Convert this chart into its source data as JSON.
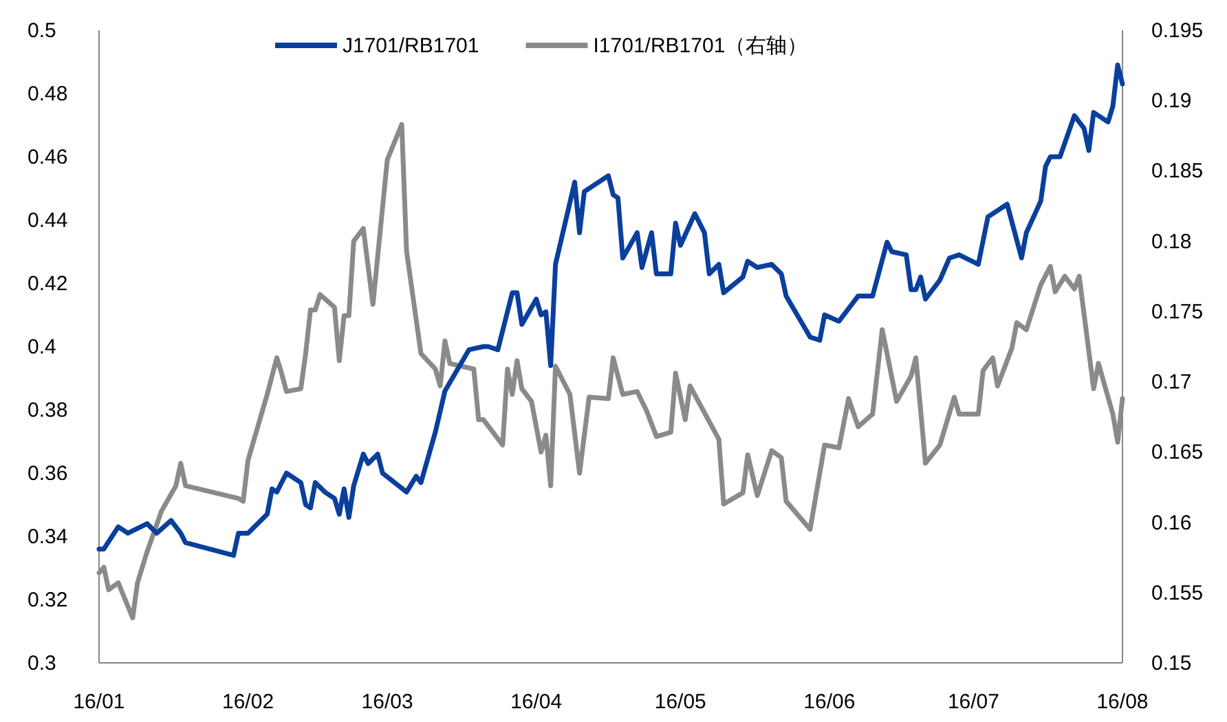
{
  "chart_data": {
    "type": "line",
    "xlim": [
      "--01-01",
      "--08-01"
    ],
    "xticks": [
      {
        "value": "--01-01",
        "label": "16/01"
      },
      {
        "value": "--02-01",
        "label": "16/02"
      },
      {
        "value": "--03-01",
        "label": "16/03"
      },
      {
        "value": "--04-01",
        "label": "16/04"
      },
      {
        "value": "--05-01",
        "label": "16/05"
      },
      {
        "value": "--06-01",
        "label": "16/06"
      },
      {
        "value": "--07-01",
        "label": "16/07"
      },
      {
        "value": "--08-01",
        "label": "16/08"
      }
    ],
    "ylim": [
      0.3,
      0.5
    ],
    "yticks": [
      0.3,
      0.32,
      0.34,
      0.36,
      0.38,
      0.4,
      0.42,
      0.44,
      0.46,
      0.48,
      0.5
    ],
    "y2lim": [
      0.15,
      0.195
    ],
    "y2ticks": [
      0.15,
      0.155,
      0.16,
      0.165,
      0.17,
      0.175,
      0.18,
      0.185,
      0.19,
      0.195
    ],
    "legend": "top",
    "series": [
      {
        "name": "J1701/RB1701",
        "color": "#0a3f9c",
        "x": [
          "--01-01",
          "--01-02",
          "--01-05",
          "--01-07",
          "--01-11",
          "--01-13",
          "--01-16",
          "--01-18",
          "--01-19",
          "--01-29",
          "--01-30",
          "--02-01",
          "--02-05",
          "--02-06",
          "--02-07",
          "--02-09",
          "--02-12",
          "--02-13",
          "--02-14",
          "--02-15",
          "--02-17",
          "--02-19",
          "--02-20",
          "--02-21",
          "--02-22",
          "--02-23",
          "--02-25",
          "--02-26",
          "--02-28",
          "--02-29",
          "--03-05",
          "--03-07",
          "--03-08",
          "--03-11",
          "--03-13",
          "--03-18",
          "--03-21",
          "--03-22",
          "--03-24",
          "--03-27",
          "--03-28",
          "--03-29",
          "--04-01",
          "--04-02",
          "--04-03",
          "--04-04",
          "--04-05",
          "--04-09",
          "--04-10",
          "--04-11",
          "--04-16",
          "--04-17",
          "--04-18",
          "--04-19",
          "--04-22",
          "--04-23",
          "--04-25",
          "--04-26",
          "--04-29",
          "--04-30",
          "--05-01",
          "--05-04",
          "--05-06",
          "--05-07",
          "--05-09",
          "--05-10",
          "--05-14",
          "--05-15",
          "--05-17",
          "--05-20",
          "--05-22",
          "--05-23",
          "--05-28",
          "--05-30",
          "--05-31",
          "--06-03",
          "--06-07",
          "--06-10",
          "--06-13",
          "--06-14",
          "--06-17",
          "--06-18",
          "--06-19",
          "--06-20",
          "--06-21",
          "--06-24",
          "--06-26",
          "--06-28",
          "--07-02",
          "--07-04",
          "--07-08",
          "--07-11",
          "--07-12",
          "--07-15",
          "--07-16",
          "--07-17",
          "--07-19",
          "--07-22",
          "--07-24",
          "--07-25",
          "--07-26",
          "--07-29",
          "--07-30",
          "--07-31",
          "--08-01"
        ],
        "values": [
          0.336,
          0.336,
          0.343,
          0.341,
          0.344,
          0.341,
          0.345,
          0.341,
          0.338,
          0.334,
          0.341,
          0.341,
          0.347,
          0.355,
          0.354,
          0.36,
          0.357,
          0.35,
          0.349,
          0.357,
          0.354,
          0.352,
          0.347,
          0.355,
          0.346,
          0.356,
          0.366,
          0.363,
          0.366,
          0.36,
          0.354,
          0.359,
          0.357,
          0.373,
          0.386,
          0.399,
          0.4,
          0.4,
          0.399,
          0.417,
          0.417,
          0.407,
          0.415,
          0.41,
          0.411,
          0.394,
          0.426,
          0.452,
          0.436,
          0.449,
          0.454,
          0.448,
          0.447,
          0.428,
          0.436,
          0.425,
          0.436,
          0.423,
          0.423,
          0.439,
          0.432,
          0.442,
          0.436,
          0.423,
          0.426,
          0.417,
          0.422,
          0.427,
          0.425,
          0.426,
          0.423,
          0.416,
          0.403,
          0.402,
          0.41,
          0.408,
          0.416,
          0.416,
          0.433,
          0.43,
          0.429,
          0.418,
          0.418,
          0.422,
          0.415,
          0.421,
          0.428,
          0.429,
          0.426,
          0.441,
          0.445,
          0.428,
          0.436,
          0.446,
          0.457,
          0.46,
          0.46,
          0.473,
          0.469,
          0.462,
          0.474,
          0.471,
          0.476,
          0.489,
          0.483
        ]
      },
      {
        "name": "I1701/RB1701（右轴）",
        "color": "#8a8a8a",
        "axis": "y2",
        "x": [
          "--01-01",
          "--01-02",
          "--01-03",
          "--01-05",
          "--01-08",
          "--01-09",
          "--01-11",
          "--01-14",
          "--01-17",
          "--01-18",
          "--01-19",
          "--01-30",
          "--01-31",
          "--02-01",
          "--02-05",
          "--02-07",
          "--02-08",
          "--02-09",
          "--02-12",
          "--02-13",
          "--02-14",
          "--02-15",
          "--02-16",
          "--02-19",
          "--02-20",
          "--02-21",
          "--02-22",
          "--02-23",
          "--02-25",
          "--02-27",
          "--03-01",
          "--03-04",
          "--03-05",
          "--03-08",
          "--03-11",
          "--03-12",
          "--03-13",
          "--03-14",
          "--03-19",
          "--03-20",
          "--03-21",
          "--03-25",
          "--03-26",
          "--03-27",
          "--03-28",
          "--03-29",
          "--03-31",
          "--04-02",
          "--04-03",
          "--04-04",
          "--04-05",
          "--04-08",
          "--04-10",
          "--04-12",
          "--04-16",
          "--04-17",
          "--04-19",
          "--04-22",
          "--04-24",
          "--04-26",
          "--04-29",
          "--04-30",
          "--05-02",
          "--05-03",
          "--05-09",
          "--05-10",
          "--05-14",
          "--05-15",
          "--05-17",
          "--05-20",
          "--05-22",
          "--05-23",
          "--05-28",
          "--05-31",
          "--06-03",
          "--06-05",
          "--06-07",
          "--06-10",
          "--06-12",
          "--06-13",
          "--06-15",
          "--06-18",
          "--06-19",
          "--06-21",
          "--06-24",
          "--06-27",
          "--06-28",
          "--07-02",
          "--07-03",
          "--07-05",
          "--07-06",
          "--07-09",
          "--07-10",
          "--07-12",
          "--07-15",
          "--07-17",
          "--07-18",
          "--07-20",
          "--07-22",
          "--07-23",
          "--07-26",
          "--07-27",
          "--07-30",
          "--07-31",
          "--08-01"
        ],
        "values": [
          0.1564,
          0.1568,
          0.1552,
          0.1557,
          0.1532,
          0.1557,
          0.1579,
          0.1608,
          0.1626,
          0.1642,
          0.1626,
          0.1617,
          0.1615,
          0.1644,
          0.1691,
          0.1717,
          0.1706,
          0.1693,
          0.1695,
          0.172,
          0.1751,
          0.1751,
          0.1762,
          0.1753,
          0.1715,
          0.1747,
          0.1747,
          0.18,
          0.1809,
          0.1755,
          0.1858,
          0.1883,
          0.1793,
          0.172,
          0.1709,
          0.1697,
          0.1729,
          0.1713,
          0.1709,
          0.1673,
          0.1673,
          0.1655,
          0.1709,
          0.1691,
          0.1715,
          0.1695,
          0.1686,
          0.165,
          0.1662,
          0.1626,
          0.1711,
          0.1691,
          0.1635,
          0.1689,
          0.1688,
          0.1717,
          0.1691,
          0.1693,
          0.1679,
          0.1661,
          0.1664,
          0.1706,
          0.1673,
          0.1697,
          0.1659,
          0.1613,
          0.1621,
          0.1648,
          0.1619,
          0.1651,
          0.1646,
          0.1615,
          0.1595,
          0.1655,
          0.1653,
          0.1688,
          0.1668,
          0.1677,
          0.1737,
          0.172,
          0.1686,
          0.1704,
          0.1717,
          0.1642,
          0.1655,
          0.1689,
          0.1677,
          0.1677,
          0.1708,
          0.1717,
          0.1697,
          0.1724,
          0.1742,
          0.1737,
          0.1769,
          0.1782,
          0.1764,
          0.1775,
          0.1766,
          0.1775,
          0.1695,
          0.1713,
          0.1677,
          0.1657,
          0.1688
        ]
      }
    ]
  }
}
